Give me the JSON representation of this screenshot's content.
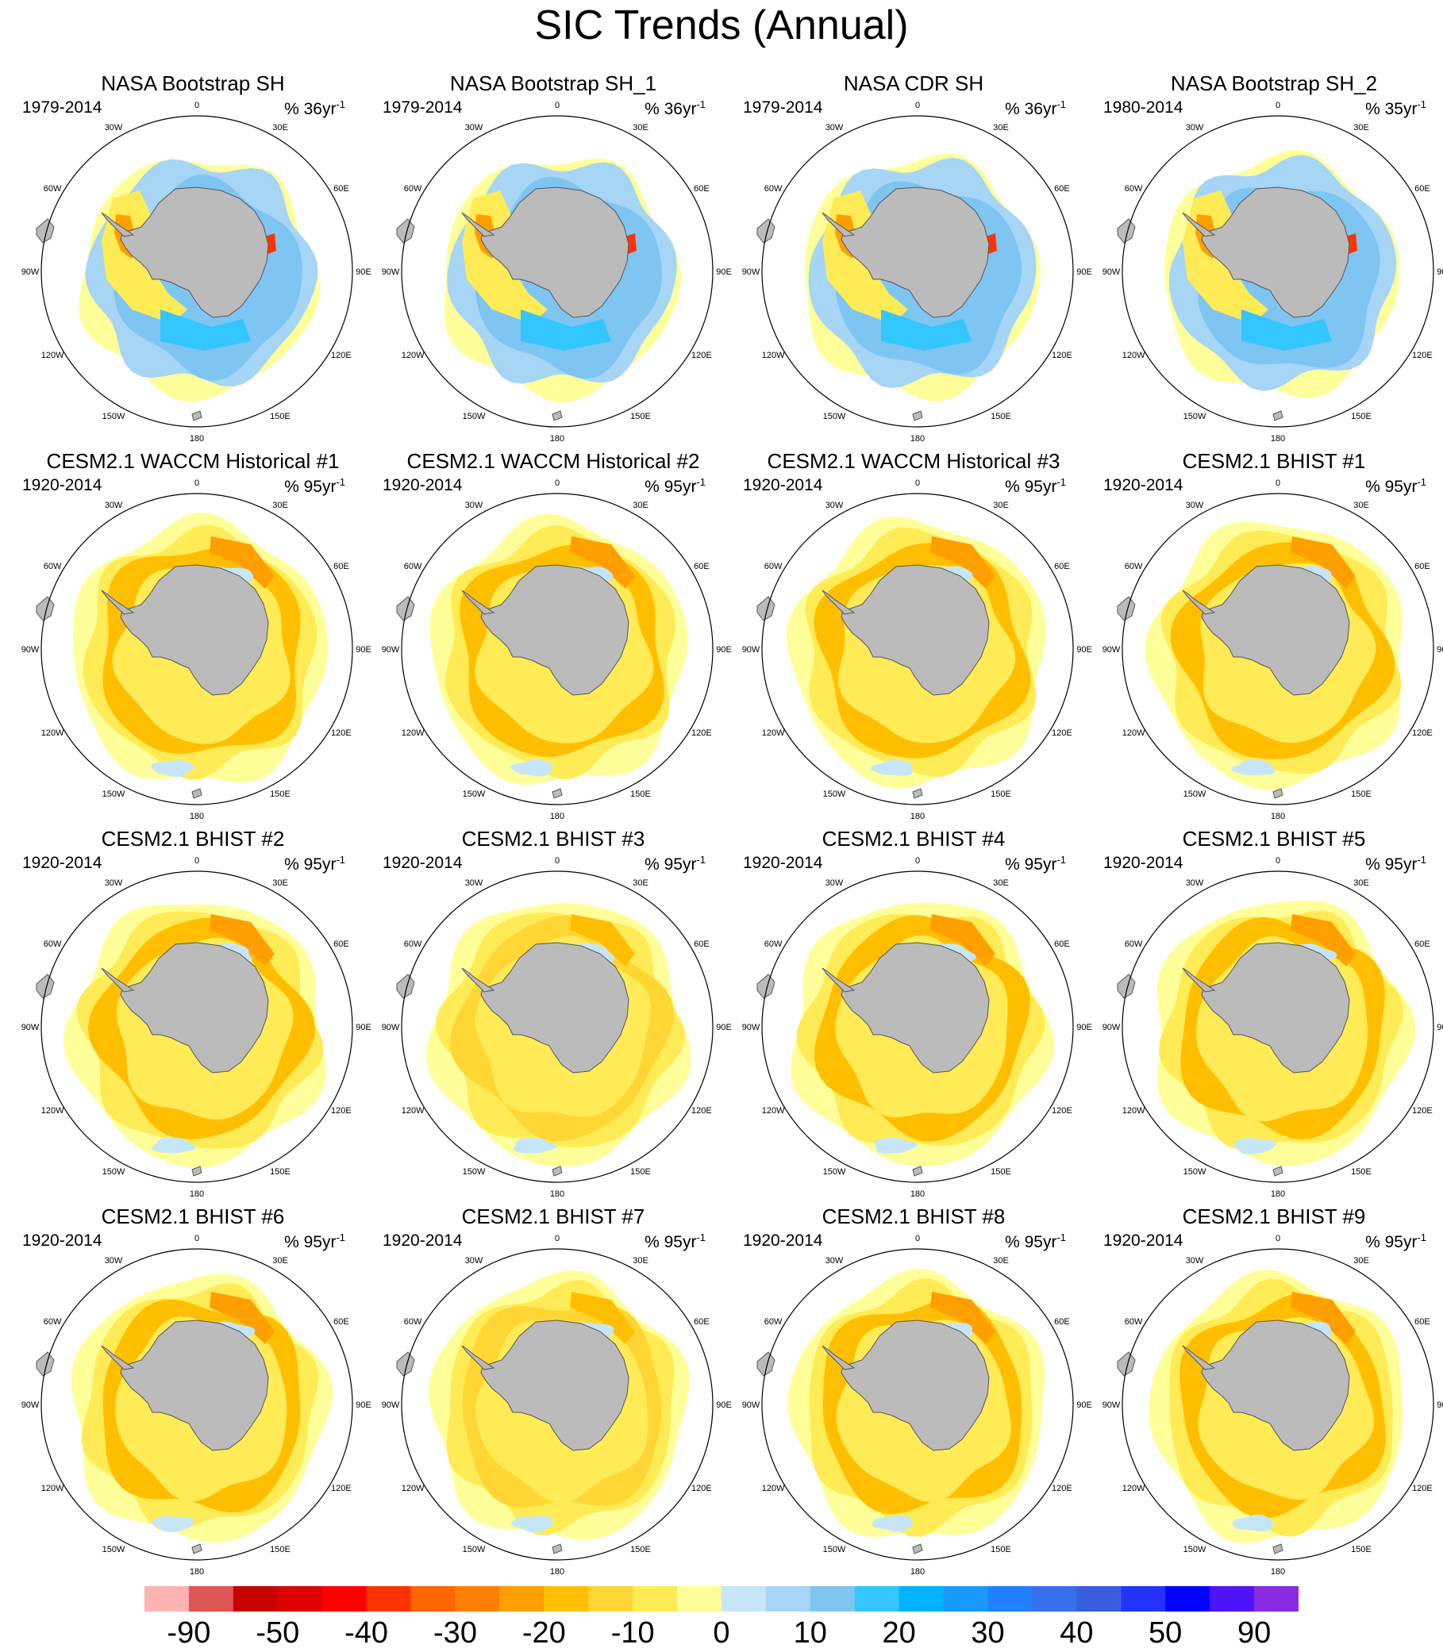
{
  "title": "SIC Trends (Annual)",
  "panels": [
    {
      "title": "NASA Bootstrap SH",
      "period": "1979-2014",
      "units_value": "% 36yr",
      "units_exp": "-1",
      "pattern": "obs"
    },
    {
      "title": "NASA Bootstrap SH_1",
      "period": "1979-2014",
      "units_value": "% 36yr",
      "units_exp": "-1",
      "pattern": "obs"
    },
    {
      "title": "NASA CDR SH",
      "period": "1979-2014",
      "units_value": "% 36yr",
      "units_exp": "-1",
      "pattern": "obs"
    },
    {
      "title": "NASA Bootstrap SH_2",
      "period": "1980-2014",
      "units_value": "% 35yr",
      "units_exp": "-1",
      "pattern": "obs"
    },
    {
      "title": "CESM2.1 WACCM Historical #1",
      "period": "1920-2014",
      "units_value": "% 95yr",
      "units_exp": "-1",
      "pattern": "model"
    },
    {
      "title": "CESM2.1 WACCM Historical #2",
      "period": "1920-2014",
      "units_value": "% 95yr",
      "units_exp": "-1",
      "pattern": "model"
    },
    {
      "title": "CESM2.1 WACCM Historical #3",
      "period": "1920-2014",
      "units_value": "% 95yr",
      "units_exp": "-1",
      "pattern": "model"
    },
    {
      "title": "CESM2.1 BHIST #1",
      "period": "1920-2014",
      "units_value": "% 95yr",
      "units_exp": "-1",
      "pattern": "model"
    },
    {
      "title": "CESM2.1 BHIST #2",
      "period": "1920-2014",
      "units_value": "% 95yr",
      "units_exp": "-1",
      "pattern": "model"
    },
    {
      "title": "CESM2.1 BHIST #3",
      "period": "1920-2014",
      "units_value": "% 95yr",
      "units_exp": "-1",
      "pattern": "model-weak"
    },
    {
      "title": "CESM2.1 BHIST #4",
      "period": "1920-2014",
      "units_value": "% 95yr",
      "units_exp": "-1",
      "pattern": "model"
    },
    {
      "title": "CESM2.1 BHIST #5",
      "period": "1920-2014",
      "units_value": "% 95yr",
      "units_exp": "-1",
      "pattern": "model"
    },
    {
      "title": "CESM2.1 BHIST #6",
      "period": "1920-2014",
      "units_value": "% 95yr",
      "units_exp": "-1",
      "pattern": "model"
    },
    {
      "title": "CESM2.1 BHIST #7",
      "period": "1920-2014",
      "units_value": "% 95yr",
      "units_exp": "-1",
      "pattern": "model-weak"
    },
    {
      "title": "CESM2.1 BHIST #8",
      "period": "1920-2014",
      "units_value": "% 95yr",
      "units_exp": "-1",
      "pattern": "model"
    },
    {
      "title": "CESM2.1 BHIST #9",
      "period": "1920-2014",
      "units_value": "% 95yr",
      "units_exp": "-1",
      "pattern": "model"
    }
  ],
  "longitude_labels": [
    "0",
    "30E",
    "60E",
    "90E",
    "120E",
    "150E",
    "180",
    "150W",
    "120W",
    "90W",
    "60W",
    "30W"
  ],
  "colorbar": {
    "colors": [
      "#ffb3b3",
      "#e05555",
      "#c80000",
      "#dd0000",
      "#ff0000",
      "#ff3300",
      "#ff6600",
      "#ff8000",
      "#ff9f00",
      "#ffbf00",
      "#ffd633",
      "#ffeb55",
      "#ffff99",
      "#c6e6f8",
      "#a6d5f5",
      "#7ec5f2",
      "#33c6ff",
      "#00b3ff",
      "#1a99ff",
      "#2080ff",
      "#3570ee",
      "#3a5de0",
      "#2233ff",
      "#0000ff",
      "#4f14f9",
      "#8a2be2"
    ],
    "tick_labels": [
      "-90",
      "-50",
      "-40",
      "-30",
      "-20",
      "-10",
      "0",
      "10",
      "20",
      "30",
      "40",
      "50",
      "90"
    ]
  },
  "colors": {
    "land": "#bbbbbb",
    "ocean_background": "#ffffff",
    "map_border": "#000000"
  }
}
